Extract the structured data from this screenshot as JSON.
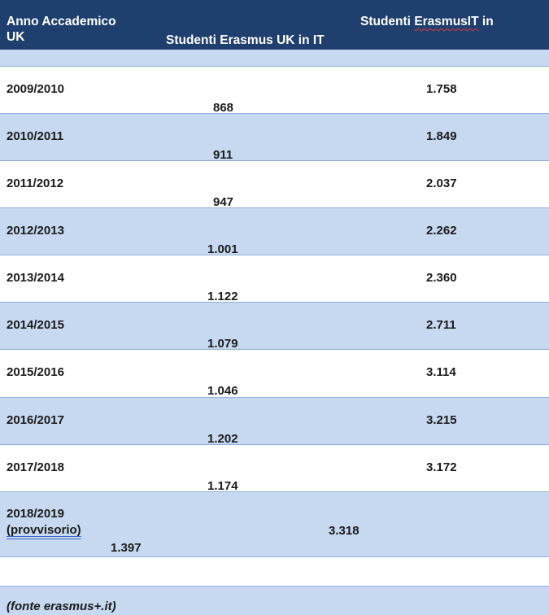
{
  "header": {
    "col1_line1": "Anno Accademico",
    "col1_line2": "UK",
    "col2": "Studenti Erasmus UK in IT",
    "col3_a": "Studenti ",
    "col3_b": "ErasmusIT",
    "col3_c": " in"
  },
  "rows": [
    {
      "year": "2009/2010",
      "uk_in_it": "868",
      "it_in_uk": "1.758"
    },
    {
      "year": "2010/2011",
      "uk_in_it": "911",
      "it_in_uk": "1.849"
    },
    {
      "year": "2011/2012",
      "uk_in_it": "947",
      "it_in_uk": "2.037"
    },
    {
      "year": "2012/2013",
      "uk_in_it": "1.001",
      "it_in_uk": "2.262"
    },
    {
      "year": "2013/2014",
      "uk_in_it": "1.122",
      "it_in_uk": "2.360"
    },
    {
      "year": "2014/2015",
      "uk_in_it": "1.079",
      "it_in_uk": "2.711"
    },
    {
      "year": "2015/2016",
      "uk_in_it": "1.046",
      "it_in_uk": "3.114"
    },
    {
      "year": "2016/2017",
      "uk_in_it": "1.202",
      "it_in_uk": "3.215"
    },
    {
      "year": "2017/2018",
      "uk_in_it": "1.174",
      "it_in_uk": "3.172"
    }
  ],
  "last_row": {
    "year": "2018/2019",
    "note": "(provvisorio)",
    "uk_in_it": "1.397",
    "it_in_uk": "3.318"
  },
  "footer": {
    "source": "(fonte erasmus+.it)"
  },
  "colors": {
    "header_bg": "#1f3f6e",
    "row_blue": "#c6d9f1",
    "row_white": "#ffffff"
  }
}
